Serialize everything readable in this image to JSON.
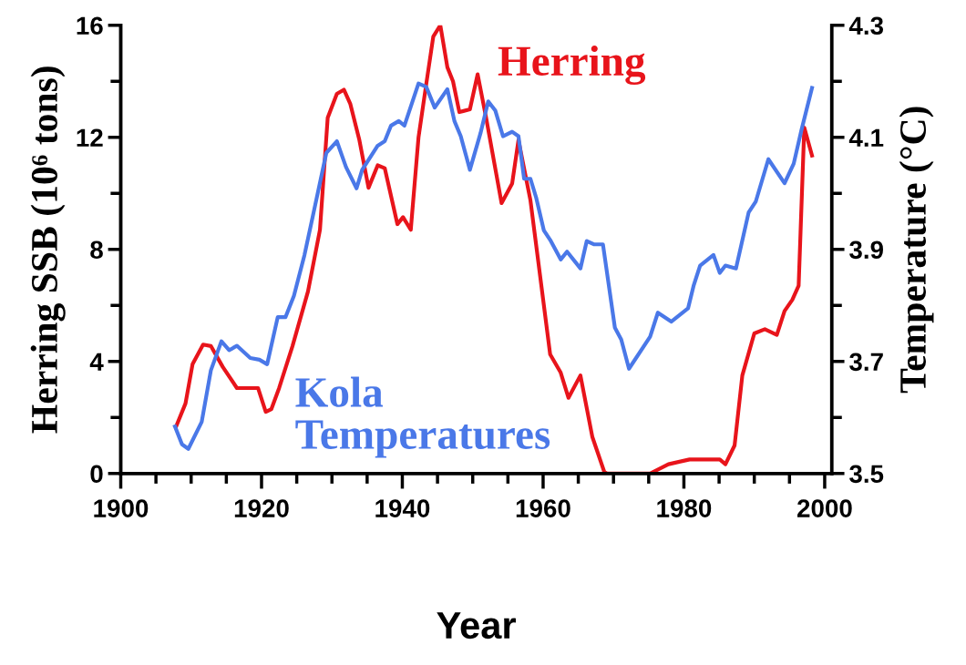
{
  "chart_data": {
    "type": "line",
    "xlabel": "Year",
    "ylabel": "Herring SSB (10⁶ tons)",
    "y2label": "Temperature (°C)",
    "xlim": [
      1900,
      2001
    ],
    "ylim": [
      0,
      16
    ],
    "y2lim": [
      3.5,
      4.3
    ],
    "xticks": [
      1900,
      {
        "value": 1905,
        "label": null
      },
      {
        "value": 1910,
        "label": null
      },
      {
        "value": 1915,
        "label": null
      },
      1920,
      {
        "value": 1925,
        "label": null
      },
      {
        "value": 1930,
        "label": null
      },
      {
        "value": 1935,
        "label": null
      },
      1940,
      {
        "value": 1945,
        "label": null
      },
      {
        "value": 1950,
        "label": null
      },
      {
        "value": 1955,
        "label": null
      },
      1960,
      {
        "value": 1965,
        "label": null
      },
      {
        "value": 1970,
        "label": null
      },
      {
        "value": 1975,
        "label": null
      },
      1980,
      {
        "value": 1985,
        "label": null
      },
      {
        "value": 1990,
        "label": null
      },
      {
        "value": 1995,
        "label": null
      },
      2000
    ],
    "yticks": [
      0,
      {
        "value": 2,
        "label": null
      },
      4,
      {
        "value": 6,
        "label": null
      },
      8,
      {
        "value": 10,
        "label": null
      },
      12,
      {
        "value": 14,
        "label": null
      },
      16
    ],
    "y2ticks": [
      {
        "value": 3.5,
        "label": "3.5"
      },
      {
        "value": 3.6,
        "label": null
      },
      {
        "value": 3.7,
        "label": "3.7"
      },
      {
        "value": 3.8,
        "label": null
      },
      {
        "value": 3.9,
        "label": "3.9"
      },
      {
        "value": 4.0,
        "label": null
      },
      {
        "value": 4.1,
        "label": "4.1"
      },
      {
        "value": 4.2,
        "label": null
      },
      {
        "value": 4.3,
        "label": "4.3"
      }
    ],
    "grid": false,
    "legend": false,
    "line_style": "solid",
    "marker": "none",
    "series": [
      {
        "name": "Herring",
        "color": "#e8141b",
        "x": [
          1907.9,
          1909.2,
          1910.2,
          1911.7,
          1912.8,
          1914.5,
          1916.5,
          1919.5,
          1920.6,
          1921.4,
          1922.5,
          1924.4,
          1926.6,
          1928.3,
          1929.4,
          1930.7,
          1931.7,
          1932.6,
          1933.9,
          1935.2,
          1936.5,
          1937.5,
          1939.3,
          1940.1,
          1941.2,
          1942.3,
          1943.4,
          1944.4,
          1945.4,
          1946.4,
          1947.2,
          1948.1,
          1949.6,
          1950.7,
          1951.9,
          1954.1,
          1955.6,
          1956.5,
          1958.2,
          1961.0,
          1962.5,
          1963.6,
          1965.3,
          1967.0,
          1968.7,
          1969.1,
          1975.2,
          1977.8,
          1980.8,
          1985.1,
          1985.9,
          1987.2,
          1988.3,
          1990.0,
          1991.5,
          1993.2,
          1994.3,
          1995.4,
          1996.3,
          1997.1,
          1998.2
        ],
        "values": [
          1.7,
          2.5,
          3.9,
          4.6,
          4.55,
          3.8,
          3.05,
          3.05,
          2.2,
          2.3,
          3.05,
          4.55,
          6.5,
          8.7,
          12.7,
          13.55,
          13.7,
          13.2,
          11.9,
          10.2,
          11.0,
          10.9,
          8.9,
          9.15,
          8.7,
          12.0,
          13.9,
          15.6,
          16.0,
          14.5,
          14.0,
          12.9,
          13.0,
          14.25,
          12.7,
          9.65,
          10.35,
          11.9,
          9.75,
          4.25,
          3.6,
          2.7,
          3.5,
          1.3,
          0.05,
          0,
          0,
          0.33,
          0.5,
          0.5,
          0.33,
          1.0,
          3.5,
          5.0,
          5.15,
          4.95,
          5.8,
          6.2,
          6.7,
          12.35,
          11.35
        ]
      },
      {
        "name": "Kola Temperatures",
        "color": "#4a78e8",
        "axis": "y2",
        "x": [
          1907.7,
          1908.7,
          1909.6,
          1911.5,
          1912.8,
          1914.3,
          1915.4,
          1916.5,
          1918.4,
          1919.7,
          1920.8,
          1922.3,
          1923.4,
          1924.6,
          1926.1,
          1927.4,
          1929.2,
          1930.7,
          1932.0,
          1933.5,
          1934.3,
          1936.5,
          1937.5,
          1938.4,
          1939.5,
          1940.3,
          1942.3,
          1943.4,
          1944.6,
          1946.4,
          1947.4,
          1948.3,
          1949.6,
          1951.1,
          1952.2,
          1953.2,
          1954.3,
          1955.6,
          1956.5,
          1957.3,
          1958.2,
          1959.0,
          1960.1,
          1961.0,
          1962.5,
          1963.4,
          1965.3,
          1966.2,
          1967.2,
          1968.5,
          1970.2,
          1971.1,
          1972.2,
          1975.2,
          1976.3,
          1978.2,
          1980.6,
          1981.4,
          1982.3,
          1984.2,
          1985.1,
          1985.9,
          1987.4,
          1989.2,
          1990.2,
          1992.0,
          1994.3,
          1995.6,
          1996.7,
          1998.2
        ],
        "values": [
          3.584,
          3.552,
          3.544,
          3.592,
          3.684,
          3.736,
          3.72,
          3.728,
          3.706,
          3.703,
          3.695,
          3.779,
          3.779,
          3.817,
          3.89,
          3.966,
          4.072,
          4.093,
          4.047,
          4.009,
          4.042,
          4.085,
          4.093,
          4.121,
          4.129,
          4.121,
          4.196,
          4.19,
          4.153,
          4.186,
          4.129,
          4.102,
          4.042,
          4.107,
          4.164,
          4.148,
          4.102,
          4.11,
          4.102,
          4.026,
          4.026,
          3.993,
          3.934,
          3.917,
          3.882,
          3.896,
          3.866,
          3.915,
          3.909,
          3.909,
          3.76,
          3.739,
          3.687,
          3.744,
          3.787,
          3.771,
          3.795,
          3.836,
          3.871,
          3.89,
          3.858,
          3.871,
          3.866,
          3.966,
          3.985,
          4.061,
          4.018,
          4.053,
          4.113,
          4.188
        ]
      }
    ]
  }
}
